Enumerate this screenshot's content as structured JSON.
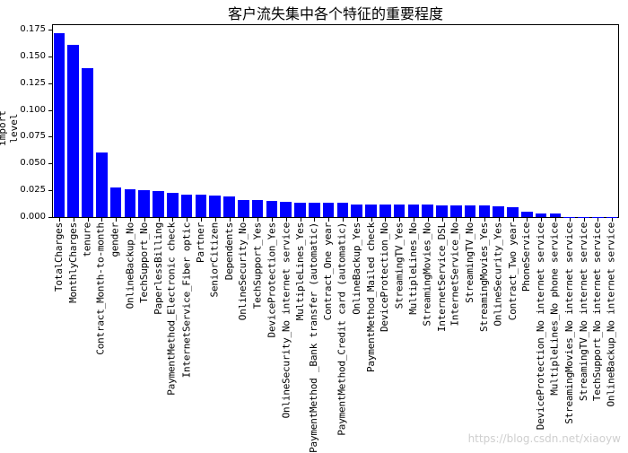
{
  "chart_data": {
    "type": "bar",
    "title": "客户流失集中各个特征的重要程度",
    "xlabel": "",
    "ylabel": "import level",
    "ylim": [
      0,
      0.18
    ],
    "yticks": [
      "0.000",
      "0.025",
      "0.050",
      "0.075",
      "0.100",
      "0.125",
      "0.150",
      "0.175"
    ],
    "grid": false,
    "bar_color": "#0000ff",
    "categories": [
      "TotalCharges",
      "MonthlyCharges",
      "tenure",
      "Contract_Month-to-month",
      "gender",
      "OnlineBackup_No",
      "TechSupport_No",
      "PaperlessBilling",
      "PaymentMethod_Electronic check",
      "InternetService_Fiber optic",
      "Partner",
      "SeniorCitizen",
      "Dependents",
      "OnlineSecurity_No",
      "TechSupport_Yes",
      "DeviceProtection_Yes",
      "OnlineSecurity_No internet service",
      "MultipleLines_Yes",
      "PaymentMethod_Bank transfer (automatic)",
      "Contract_One year",
      "PaymentMethod_Credit card (automatic)",
      "OnlineBackup_Yes",
      "PaymentMethod_Mailed check",
      "DeviceProtection_No",
      "StreamingTV_Yes",
      "MultipleLines_No",
      "StreamingMovies_No",
      "InternetService_DSL",
      "InternetService_No",
      "StreamingTV_No",
      "StreamingMovies_Yes",
      "OnlineSecurity_Yes",
      "Contract_Two year",
      "PhoneService",
      "DeviceProtection_No internet service",
      "MultipleLines_No phone service",
      "StreamingMovies_No internet service",
      "StreamingTV_No internet service",
      "TechSupport_No internet service",
      "OnlineBackup_No internet service"
    ],
    "values": [
      0.172,
      0.161,
      0.139,
      0.06,
      0.028,
      0.026,
      0.025,
      0.024,
      0.023,
      0.021,
      0.021,
      0.02,
      0.019,
      0.016,
      0.016,
      0.015,
      0.014,
      0.013,
      0.013,
      0.013,
      0.013,
      0.012,
      0.012,
      0.012,
      0.012,
      0.012,
      0.012,
      0.011,
      0.011,
      0.011,
      0.011,
      0.01,
      0.009,
      0.005,
      0.003,
      0.003,
      0.0003,
      0.0003,
      0.0003,
      0.0003
    ]
  },
  "display_labels": [
    "TotalCharges",
    "MonthlyCharges",
    "tenure",
    "Contract_Month-to-month",
    "gender",
    "OnlineBackup_No",
    "TechSupport_No",
    "PaperlessBilling",
    "PaymentMethod_Electronic check",
    "InternetService_Fiber optic",
    "Partner",
    "SeniorCitizen",
    "Dependents",
    "OnlineSecurity_No",
    "TechSupport_Yes",
    "DeviceProtection_Yes",
    "OnlineSecurity_No internet service",
    "MultipleLines_Yes",
    "PaymentMethod _Bank transfer (automatic)",
    "Contract_One year",
    "PaymentMethod_Credit card (automatic)",
    "OnlineBackup_Yes",
    "PaymentMethod_Mailed check",
    "DeviceProtection_No",
    "StreamingTV_Yes",
    "MultipleLines_No",
    "StreamingMovies_No",
    "InternetService_DSL",
    "InternetService_No",
    "StreamingTV_No",
    "StreamingMovies_Yes",
    "OnlineSecurity_Yes",
    "Contract_Two year",
    "PhoneService",
    "DeviceProtection_No internet service",
    "MultipleLines_No phone service",
    "StreamingMovies_No internet service",
    "StreamingTV_No internet service",
    "TechSupport_No internet service",
    "OnlineBackup_No internet service"
  ],
  "watermark": "https://blog.csdn.net/xiaoyw"
}
